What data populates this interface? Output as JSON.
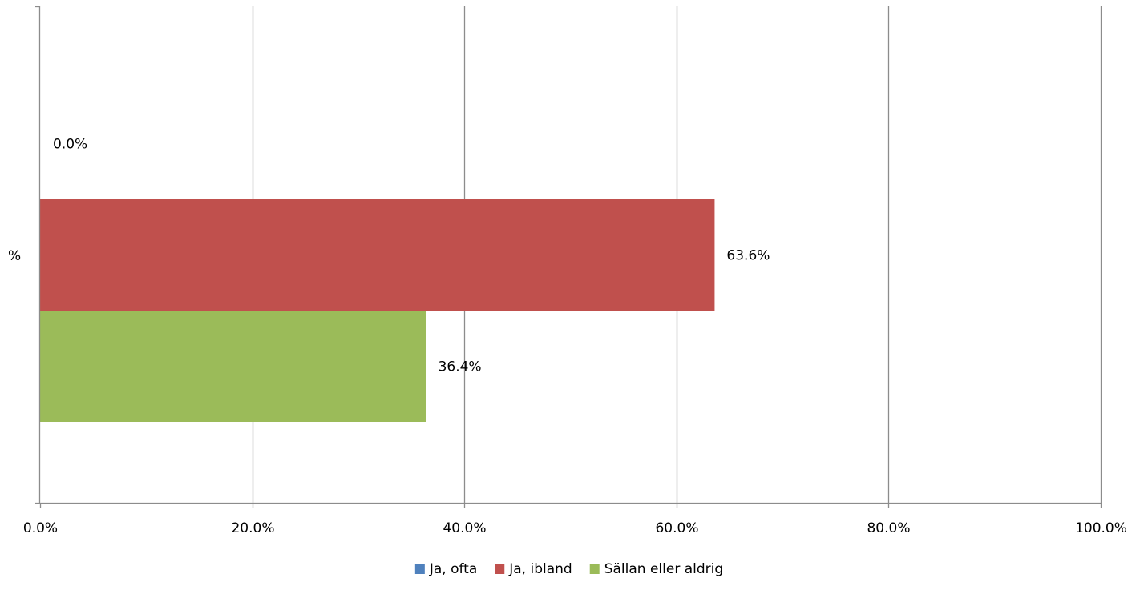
{
  "chart_data": {
    "type": "bar",
    "orientation": "horizontal",
    "categories": [
      "%"
    ],
    "series": [
      {
        "name": "Ja, ofta",
        "values": [
          0.0
        ],
        "color": "#4f81bd",
        "label": "0.0%"
      },
      {
        "name": "Ja, ibland",
        "values": [
          63.6
        ],
        "color": "#c0504d",
        "label": "63.6%"
      },
      {
        "name": "Sällan eller aldrig",
        "values": [
          36.4
        ],
        "color": "#9bbb59",
        "label": "36.4%"
      }
    ],
    "xlim": [
      0,
      100
    ],
    "x_ticks": [
      0,
      20,
      40,
      60,
      80,
      100
    ],
    "x_tick_labels": [
      "0.0%",
      "20.0%",
      "40.0%",
      "60.0%",
      "80.0%",
      "100.0%"
    ],
    "title": "",
    "xlabel": "",
    "ylabel": "",
    "grid": "vertical",
    "legend": {
      "position": "bottom",
      "items": [
        "Ja, ofta",
        "Ja, ibland",
        "Sällan eller aldrig"
      ]
    }
  }
}
